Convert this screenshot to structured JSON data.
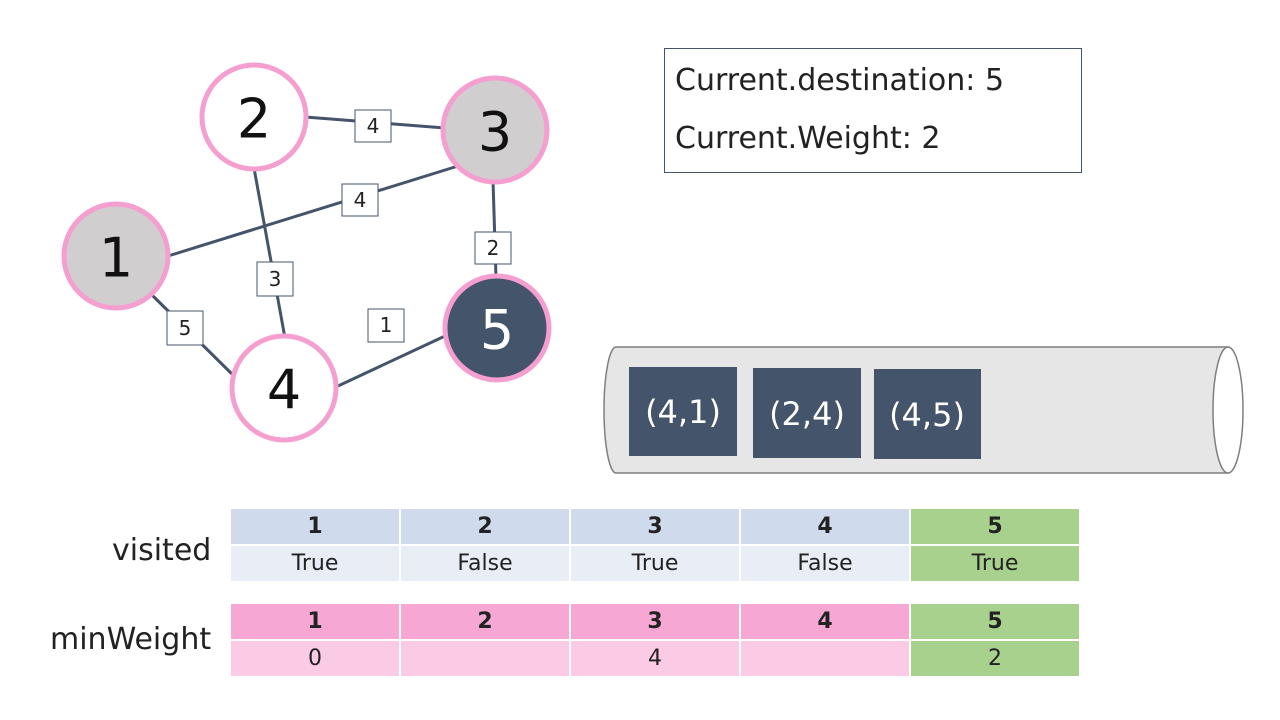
{
  "graph": {
    "nodes": [
      {
        "id": 1,
        "label": "1",
        "state": "visited"
      },
      {
        "id": 2,
        "label": "2",
        "state": "unvisited"
      },
      {
        "id": 3,
        "label": "3",
        "state": "visited"
      },
      {
        "id": 4,
        "label": "4",
        "state": "unvisited"
      },
      {
        "id": 5,
        "label": "5",
        "state": "current"
      }
    ],
    "edges": [
      {
        "from": 2,
        "to": 3,
        "weight": "4"
      },
      {
        "from": 1,
        "to": 3,
        "weight": "4"
      },
      {
        "from": 3,
        "to": 5,
        "weight": "2"
      },
      {
        "from": 2,
        "to": 4,
        "weight": "3"
      },
      {
        "from": 1,
        "to": 4,
        "weight": "5"
      },
      {
        "from": 4,
        "to": 5,
        "weight": "1"
      }
    ],
    "colors": {
      "ring": "#f59ed0",
      "visited_fill": "#d0cece",
      "unvisited_fill": "#ffffff",
      "current_fill": "#44546a",
      "edge": "#44546a"
    }
  },
  "info": {
    "destination": "Current.destination: 5",
    "weight": "Current.Weight: 2"
  },
  "queue": {
    "items": [
      "(4,1)",
      "(2,4)",
      "(4,5)"
    ],
    "item_color": "#44546a",
    "tube_color": "#e7e6e6"
  },
  "visited": {
    "label": "visited",
    "headers": [
      "1",
      "2",
      "3",
      "4",
      "5"
    ],
    "values": [
      "True",
      "False",
      "True",
      "False",
      "True"
    ],
    "highlight_index": 4
  },
  "minWeight": {
    "label": "minWeight",
    "headers": [
      "1",
      "2",
      "3",
      "4",
      "5"
    ],
    "values": [
      "0",
      "",
      "4",
      "",
      "2"
    ],
    "highlight_index": 4
  }
}
